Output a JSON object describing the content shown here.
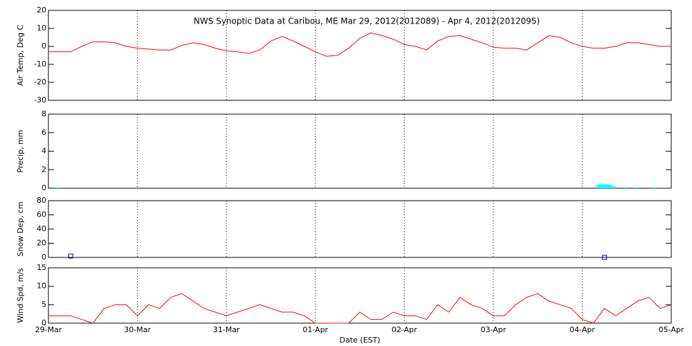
{
  "chart_data": [
    {
      "type": "line",
      "title": "NWS Synoptic Data at Caribou, ME   Mar 29, 2012(2012089) - Apr  4, 2012(2012095)",
      "ylabel": "Air Temp, Deg C",
      "ylim": [
        -30,
        20
      ],
      "yticks": [
        -30,
        -20,
        -10,
        0,
        10,
        20
      ],
      "series": [
        {
          "color": "#ff0000",
          "x": [
            0,
            3,
            6,
            9,
            12,
            15,
            18,
            21,
            24,
            27,
            30,
            33,
            36,
            39,
            42,
            45,
            48,
            51,
            54,
            57,
            60,
            63,
            66,
            69,
            72,
            75,
            78,
            81,
            84,
            87,
            90,
            93,
            96,
            99,
            102,
            105,
            108,
            111,
            114,
            117,
            120,
            123,
            126,
            129,
            132,
            135,
            138,
            141,
            144,
            147,
            150,
            153,
            156,
            159,
            162,
            165,
            168
          ],
          "values": [
            -3,
            -3,
            -3,
            0,
            2.5,
            2.5,
            2,
            0,
            -1,
            -1.5,
            -2,
            -2,
            0.5,
            2,
            1,
            -1,
            -2.5,
            -3,
            -4,
            -2,
            3,
            5.5,
            3,
            0,
            -3,
            -5.5,
            -5,
            -1,
            4.5,
            7.5,
            6,
            4,
            1,
            0,
            -2,
            3,
            5.5,
            6,
            4,
            2,
            -0.5,
            -1,
            -1,
            -2,
            2,
            6,
            5,
            2,
            0,
            -1,
            -1,
            0,
            2,
            2,
            1,
            0,
            0
          ]
        }
      ]
    },
    {
      "type": "bar",
      "ylabel": "Precip, mm",
      "ylim": [
        0,
        8
      ],
      "yticks": [
        0,
        2,
        4,
        6,
        8
      ],
      "series": [
        {
          "color": "#00ffff",
          "x": [
            2,
            148,
            149,
            150,
            151,
            152,
            155,
            158,
            163
          ],
          "values": [
            0.1,
            0.4,
            0.4,
            0.4,
            0.4,
            0.2,
            0.1,
            0.1,
            0.1
          ]
        }
      ]
    },
    {
      "type": "scatter",
      "ylabel": "Snow Dep, cm",
      "ylim": [
        0,
        80
      ],
      "yticks": [
        0,
        20,
        40,
        60,
        80
      ],
      "series": [
        {
          "color": "#000080",
          "x": [
            6,
            150
          ],
          "values": [
            2,
            0
          ]
        }
      ]
    },
    {
      "type": "line",
      "ylabel": "Wind Spd, m/s",
      "xlabel": "Date (EST)",
      "ylim": [
        0,
        15
      ],
      "yticks": [
        0,
        5,
        10,
        15
      ],
      "xlim": [
        0,
        168
      ],
      "xticks": [
        {
          "value": 0,
          "label": "29-Mar"
        },
        {
          "value": 24,
          "label": "30-Mar"
        },
        {
          "value": 48,
          "label": "31-Mar"
        },
        {
          "value": 72,
          "label": "01-Apr"
        },
        {
          "value": 96,
          "label": "02-Apr"
        },
        {
          "value": 120,
          "label": "03-Apr"
        },
        {
          "value": 144,
          "label": "04-Apr"
        },
        {
          "value": 168,
          "label": "05-Apr"
        }
      ],
      "series": [
        {
          "color": "#ff0000",
          "x": [
            0,
            3,
            6,
            9,
            12,
            15,
            18,
            21,
            24,
            27,
            30,
            33,
            36,
            39,
            42,
            45,
            48,
            51,
            54,
            57,
            60,
            63,
            66,
            69,
            72,
            75,
            78,
            81,
            84,
            87,
            90,
            93,
            96,
            99,
            102,
            105,
            108,
            111,
            114,
            117,
            120,
            123,
            126,
            129,
            132,
            135,
            138,
            141,
            144,
            147,
            150,
            153,
            156,
            159,
            162,
            165,
            168
          ],
          "values": [
            2,
            2,
            2,
            1,
            0,
            4,
            5,
            5,
            2,
            5,
            4,
            7,
            8,
            6,
            4,
            3,
            2,
            3,
            4,
            5,
            4,
            3,
            3,
            2,
            0,
            0,
            0,
            0,
            3,
            1,
            1,
            3,
            2,
            2,
            1,
            5,
            3,
            7,
            5,
            4,
            2,
            2,
            5,
            7,
            8,
            6,
            5,
            4,
            1,
            0,
            4,
            2,
            4,
            6,
            7,
            4,
            5
          ]
        }
      ]
    }
  ]
}
